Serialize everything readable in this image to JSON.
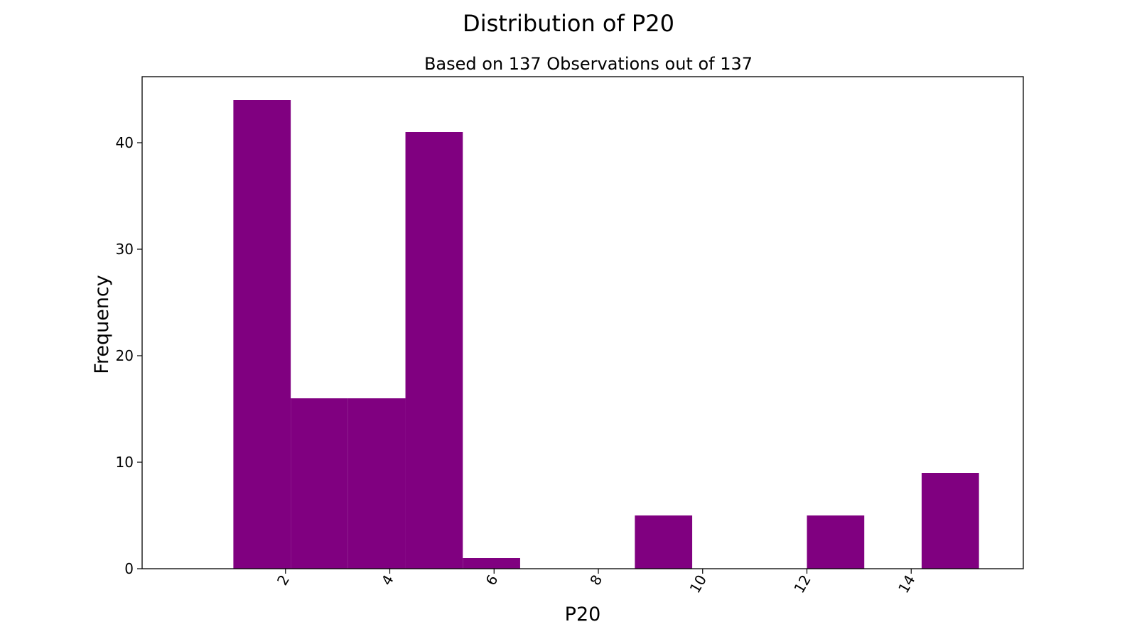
{
  "chart_data": {
    "type": "bar",
    "title": "Distribution of P20",
    "subtitle": "Based on 137 Observations out of 137",
    "xlabel": "P20",
    "ylabel": "Frequency",
    "bin_edges": [
      1.0,
      2.1,
      3.2,
      4.3,
      5.4,
      6.5,
      7.6,
      8.7,
      9.8,
      10.9,
      12.0,
      13.1,
      14.2,
      15.3
    ],
    "values": [
      44,
      16,
      16,
      41,
      1,
      0,
      0,
      5,
      0,
      0,
      5,
      0,
      9
    ],
    "xlim": [
      -0.75,
      16.15
    ],
    "ylim": [
      0,
      46.2
    ],
    "xticks": [
      2,
      4,
      6,
      8,
      10,
      12,
      14
    ],
    "yticks": [
      0,
      10,
      20,
      30,
      40
    ],
    "x_tick_rotation": "60 degrees",
    "bar_color": "#800080",
    "grid": false
  }
}
